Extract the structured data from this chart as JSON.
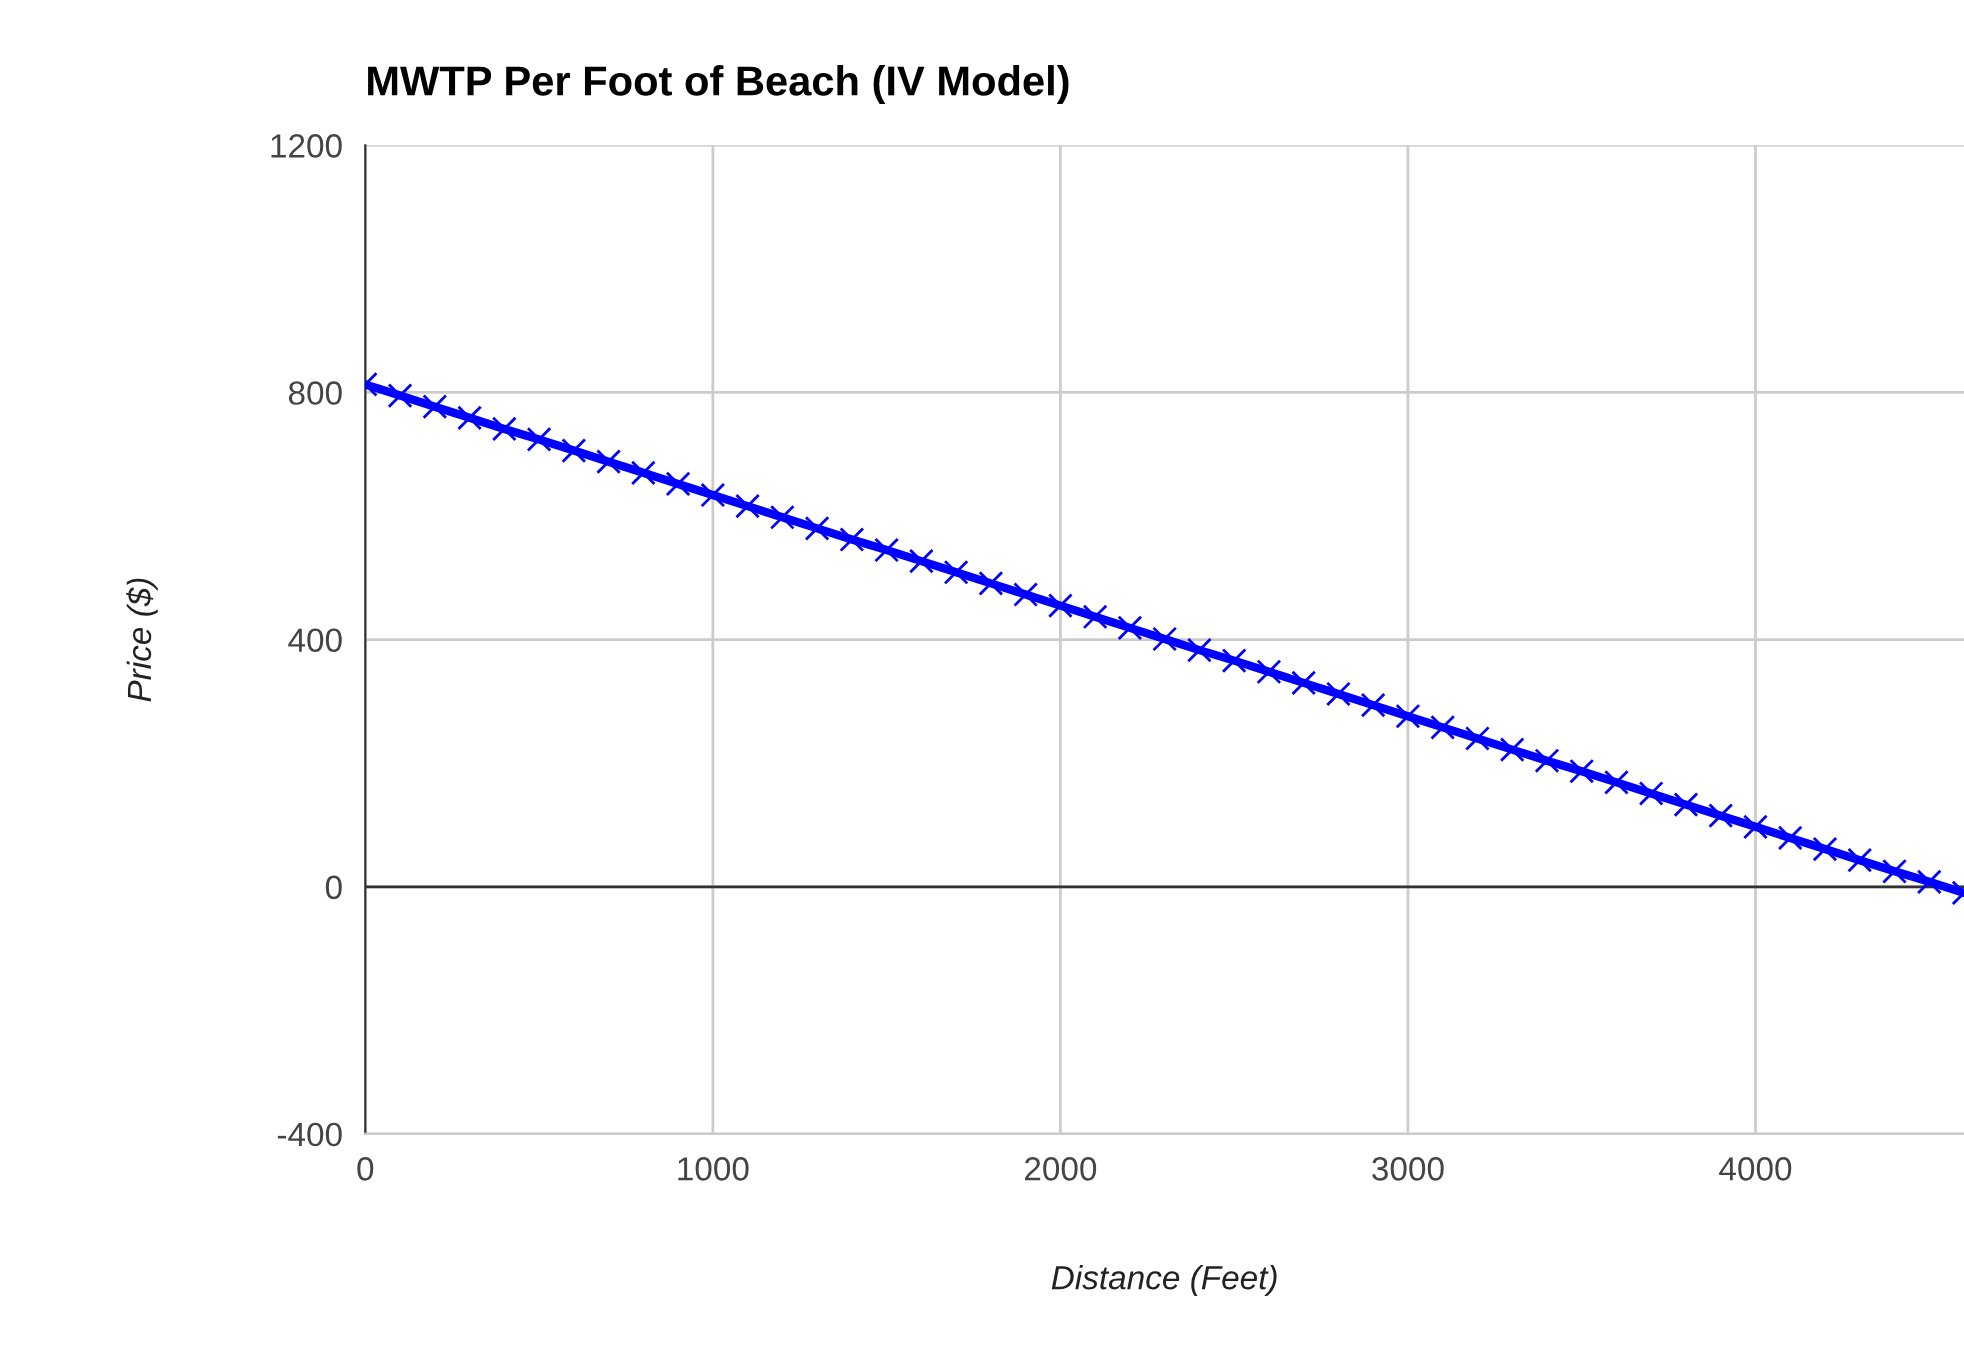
{
  "chart_data": {
    "type": "line",
    "title": "MWTP Per Foot of Beach (IV Model)",
    "xlabel": "Distance (Feet)",
    "ylabel": "Price ($)",
    "x": [
      0,
      100,
      200,
      300,
      400,
      500,
      600,
      700,
      800,
      900,
      1000,
      1100,
      1200,
      1300,
      1400,
      1500,
      1600,
      1700,
      1800,
      1900,
      2000,
      2100,
      2200,
      2300,
      2400,
      2500,
      2600,
      2700,
      2800,
      2900,
      3000,
      3100,
      3200,
      3300,
      3400,
      3500,
      3600,
      3700,
      3800,
      3900,
      4000,
      4100,
      4200,
      4300,
      4400,
      4500,
      4600
    ],
    "series": [
      {
        "color": "#0000ff",
        "values": [
          813,
          795,
          777,
          759,
          741,
          724,
          706,
          688,
          670,
          652,
          634,
          616,
          598,
          580,
          562,
          545,
          527,
          509,
          491,
          473,
          455,
          437,
          419,
          401,
          383,
          366,
          348,
          330,
          312,
          294,
          276,
          258,
          240,
          222,
          204,
          187,
          169,
          151,
          133,
          115,
          97,
          79,
          61,
          43,
          25,
          8,
          -10
        ]
      }
    ],
    "xlim": [
      0,
      4600
    ],
    "xticks": [
      0,
      1000,
      2000,
      3000,
      4000
    ],
    "ylim": [
      -400,
      1200
    ],
    "yticks": [
      -400,
      0,
      400,
      800,
      1200
    ],
    "ref_lines": [
      {
        "axis": "y",
        "value": 0,
        "color": "#333333"
      }
    ],
    "grid": true,
    "marker": "cross",
    "line_style": "solid",
    "legend": false
  }
}
